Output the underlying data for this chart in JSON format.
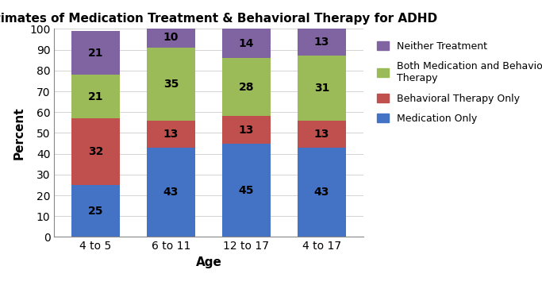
{
  "title": "Estimates of Medication Treatment & Behavioral Therapy for ADHD",
  "xlabel": "Age",
  "ylabel": "Percent",
  "categories": [
    "4 to 5",
    "6 to 11",
    "12 to 17",
    "4 to 17"
  ],
  "series": {
    "Medication Only": [
      25,
      43,
      45,
      43
    ],
    "Behavioral Therapy Only": [
      32,
      13,
      13,
      13
    ],
    "Both Medication and Behavioral Therapy": [
      21,
      35,
      28,
      31
    ],
    "Neither Treatment": [
      21,
      10,
      14,
      13
    ]
  },
  "colors": {
    "Medication Only": "#4472C4",
    "Behavioral Therapy Only": "#C0504D",
    "Both Medication and Behavioral Therapy": "#9BBB59",
    "Neither Treatment": "#8064A2"
  },
  "ylim": [
    0,
    100
  ],
  "yticks": [
    0,
    10,
    20,
    30,
    40,
    50,
    60,
    70,
    80,
    90,
    100
  ],
  "legend_order": [
    "Neither Treatment",
    "Both Medication and Behavioral Therapy",
    "Behavioral Therapy Only",
    "Medication Only"
  ],
  "bar_width": 0.65,
  "label_fontsize": 10,
  "title_fontsize": 11,
  "axis_label_fontsize": 11,
  "tick_fontsize": 10,
  "legend_fontsize": 9
}
